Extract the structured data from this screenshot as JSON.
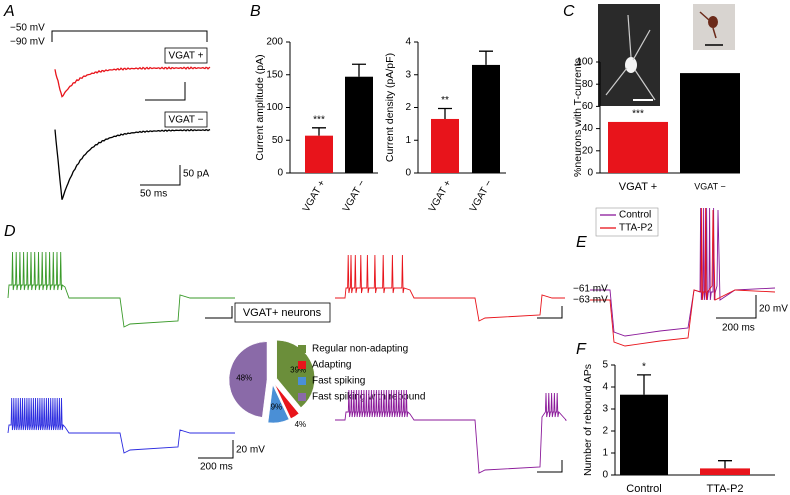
{
  "figure": {
    "panels": [
      "A",
      "B",
      "C",
      "D",
      "E",
      "F"
    ],
    "panel_a": {
      "protocol_labels": [
        "−50 mV",
        "−90 mV"
      ],
      "trace_labels": [
        "VGAT +",
        "VGAT −"
      ],
      "trace_colors": [
        "#e8141b",
        "#000000"
      ],
      "scale_labels": [
        "50 pA",
        "50 ms"
      ]
    },
    "panel_d": {
      "trace_colors": [
        "#3a9a2a",
        "#e8141b",
        "#2c2ce0",
        "#8b1a9a"
      ],
      "scale_labels": [
        "20 mV",
        "200 ms"
      ]
    },
    "panel_e": {
      "legend": [
        "Control",
        "TTA-P2"
      ],
      "legend_colors": [
        "#8b1a9a",
        "#e8141b"
      ],
      "voltage_labels": [
        "−61 mV",
        "−63 mV"
      ],
      "scale_labels": [
        "20 mV",
        "200 ms"
      ]
    }
  },
  "chart_data": [
    {
      "type": "bar",
      "ylabel": "Current amplitude (pA)",
      "categories": [
        "VGAT +",
        "VGAT −"
      ],
      "values": [
        57,
        147
      ],
      "errors": [
        12,
        19
      ],
      "colors": [
        "#e8141b",
        "#000000"
      ],
      "ylim": [
        0,
        200
      ],
      "yticks": [
        0,
        50,
        100,
        150,
        200
      ],
      "annotation": "***"
    },
    {
      "type": "bar",
      "ylabel": "Current density (pA/pF)",
      "categories": [
        "VGAT +",
        "VGAT −"
      ],
      "values": [
        1.65,
        3.3
      ],
      "errors": [
        0.32,
        0.42
      ],
      "colors": [
        "#e8141b",
        "#000000"
      ],
      "ylim": [
        0,
        4
      ],
      "yticks": [
        0,
        1,
        2,
        3,
        4
      ],
      "annotation": "**"
    },
    {
      "type": "bar",
      "ylabel": "%neurons with T-currents",
      "categories": [
        "VGAT +",
        "VGAT −"
      ],
      "values": [
        46,
        90
      ],
      "colors": [
        "#e8141b",
        "#000000"
      ],
      "ylim": [
        0,
        100
      ],
      "yticks": [
        0,
        20,
        40,
        60,
        80,
        100
      ],
      "annotation": "***"
    },
    {
      "type": "pie",
      "title": "VGAT+ neurons",
      "categories": [
        "Regular non-adapting",
        "Adapting",
        "Fast spiking",
        "Fast spiking with rebound"
      ],
      "values": [
        39,
        4,
        9,
        48
      ],
      "value_labels": [
        "39%",
        "4%",
        "9%",
        "48%"
      ],
      "colors": [
        "#6b8e3a",
        "#e8141b",
        "#4a8fd6",
        "#8a6aa8"
      ]
    },
    {
      "type": "bar",
      "ylabel": "Number of rebound APs",
      "categories": [
        "Control",
        "TTA-P2"
      ],
      "values": [
        3.65,
        0.3
      ],
      "errors": [
        0.9,
        0.35
      ],
      "colors": [
        "#000000",
        "#e8141b"
      ],
      "ylim": [
        0,
        5
      ],
      "yticks": [
        0,
        1,
        2,
        3,
        4,
        5
      ],
      "annotation": "*"
    }
  ]
}
